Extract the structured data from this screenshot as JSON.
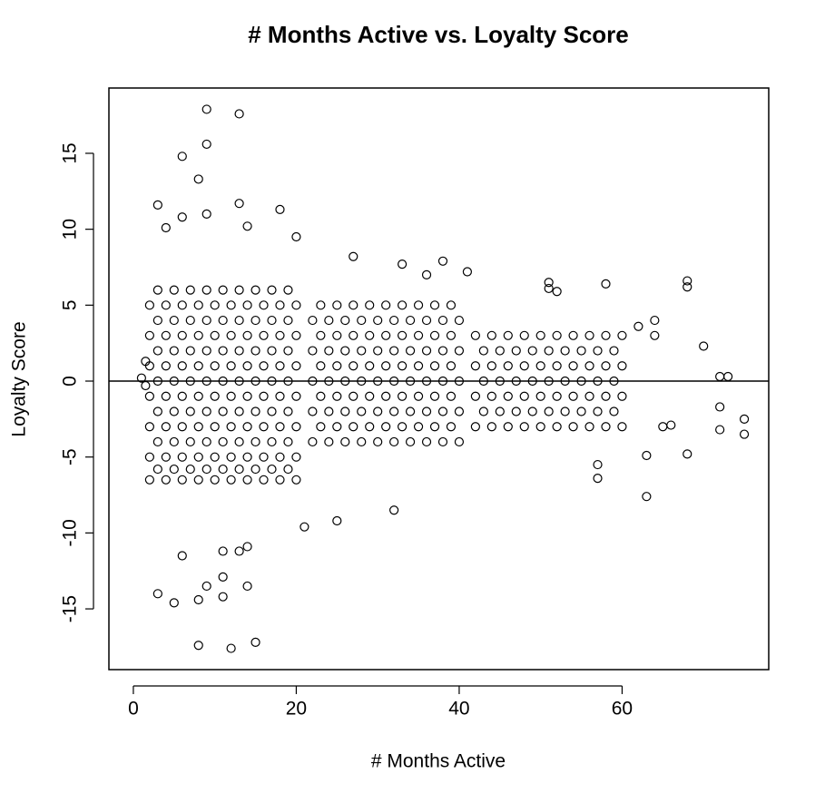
{
  "chart_data": {
    "type": "scatter",
    "title": "# Months Active vs. Loyalty Score",
    "x_label": "# Months Active",
    "y_label": "Loyalty Score",
    "color": "#000000",
    "hline": 0,
    "xlim": [
      -3.0,
      78.0
    ],
    "ylim": [
      -19.0,
      19.3
    ],
    "xticks": [
      0,
      20,
      40,
      60
    ],
    "yticks": [
      -15,
      -10,
      -5,
      0,
      5,
      10,
      15
    ],
    "x": [
      2,
      2,
      2,
      2,
      2,
      2,
      2,
      3,
      3,
      3,
      3,
      3,
      3,
      3,
      4,
      4,
      4,
      4,
      4,
      4,
      4,
      5,
      5,
      5,
      5,
      5,
      5,
      5,
      6,
      6,
      6,
      6,
      6,
      6,
      6,
      7,
      7,
      7,
      7,
      7,
      7,
      7,
      8,
      8,
      8,
      8,
      8,
      8,
      8,
      9,
      9,
      9,
      9,
      9,
      9,
      9,
      10,
      10,
      10,
      10,
      10,
      10,
      10,
      11,
      11,
      11,
      11,
      11,
      11,
      11,
      12,
      12,
      12,
      12,
      12,
      12,
      12,
      13,
      13,
      13,
      13,
      13,
      13,
      13,
      14,
      14,
      14,
      14,
      14,
      14,
      14,
      15,
      15,
      15,
      15,
      15,
      15,
      15,
      16,
      16,
      16,
      16,
      16,
      16,
      16,
      17,
      17,
      17,
      17,
      17,
      17,
      17,
      18,
      18,
      18,
      18,
      18,
      18,
      18,
      19,
      19,
      19,
      19,
      19,
      19,
      19,
      20,
      20,
      20,
      20,
      20,
      20,
      20,
      22,
      22,
      22,
      22,
      22,
      23,
      23,
      23,
      23,
      23,
      24,
      24,
      24,
      24,
      24,
      25,
      25,
      25,
      25,
      25,
      26,
      26,
      26,
      26,
      26,
      27,
      27,
      27,
      27,
      27,
      28,
      28,
      28,
      28,
      28,
      29,
      29,
      29,
      29,
      29,
      30,
      30,
      30,
      30,
      30,
      31,
      31,
      31,
      31,
      31,
      32,
      32,
      32,
      32,
      32,
      33,
      33,
      33,
      33,
      33,
      34,
      34,
      34,
      34,
      34,
      35,
      35,
      35,
      35,
      35,
      36,
      36,
      36,
      36,
      36,
      37,
      37,
      37,
      37,
      37,
      38,
      38,
      38,
      38,
      38,
      39,
      39,
      39,
      39,
      39,
      40,
      40,
      40,
      40,
      40,
      42,
      42,
      42,
      42,
      43,
      43,
      43,
      44,
      44,
      44,
      44,
      45,
      45,
      45,
      46,
      46,
      46,
      46,
      47,
      47,
      47,
      48,
      48,
      48,
      48,
      49,
      49,
      49,
      50,
      50,
      50,
      50,
      51,
      51,
      51,
      52,
      52,
      52,
      52,
      53,
      53,
      53,
      54,
      54,
      54,
      54,
      55,
      55,
      55,
      56,
      56,
      56,
      56,
      57,
      57,
      57,
      58,
      58,
      58,
      58,
      59,
      59,
      59,
      60,
      60,
      60,
      60,
      9,
      13,
      9,
      6,
      8,
      3,
      13,
      9,
      6,
      18,
      4,
      14,
      20,
      8,
      12,
      15,
      5,
      3,
      8,
      11,
      9,
      14,
      11,
      6,
      11,
      13,
      14,
      32,
      25,
      21,
      63,
      57,
      57,
      51,
      51,
      52,
      58,
      68,
      68,
      70,
      75,
      75,
      72,
      72,
      68,
      63,
      72,
      73,
      65,
      66,
      62,
      64,
      64,
      38,
      41,
      36,
      33,
      27,
      1,
      1.5,
      1.5
    ],
    "y": [
      -5,
      -3,
      -1,
      1,
      3,
      5,
      -6.5,
      -4,
      -2,
      0,
      2,
      4,
      6,
      -5.8,
      -5,
      -3,
      -1,
      1,
      3,
      5,
      -6.5,
      -4,
      -2,
      0,
      2,
      4,
      6,
      -5.8,
      -5,
      -3,
      -1,
      1,
      3,
      5,
      -6.5,
      -4,
      -2,
      0,
      2,
      4,
      6,
      -5.8,
      -5,
      -3,
      -1,
      1,
      3,
      5,
      -6.5,
      -4,
      -2,
      0,
      2,
      4,
      6,
      -5.8,
      -5,
      -3,
      -1,
      1,
      3,
      5,
      -6.5,
      -4,
      -2,
      0,
      2,
      4,
      6,
      -5.8,
      -5,
      -3,
      -1,
      1,
      3,
      5,
      -6.5,
      -4,
      -2,
      0,
      2,
      4,
      6,
      -5.8,
      -5,
      -3,
      -1,
      1,
      3,
      5,
      -6.5,
      -4,
      -2,
      0,
      2,
      4,
      6,
      -5.8,
      -5,
      -3,
      -1,
      1,
      3,
      5,
      -6.5,
      -4,
      -2,
      0,
      2,
      4,
      6,
      -5.8,
      -5,
      -3,
      -1,
      1,
      3,
      5,
      -6.5,
      -4,
      -2,
      0,
      2,
      4,
      6,
      -5.8,
      -5,
      -3,
      -1,
      1,
      3,
      5,
      -6.5,
      -4,
      -2,
      0,
      2,
      4,
      -3,
      -1,
      1,
      3,
      5,
      -4,
      -2,
      0,
      2,
      4,
      -3,
      -1,
      1,
      3,
      5,
      -4,
      -2,
      0,
      2,
      4,
      -3,
      -1,
      1,
      3,
      5,
      -4,
      -2,
      0,
      2,
      4,
      -3,
      -1,
      1,
      3,
      5,
      -4,
      -2,
      0,
      2,
      4,
      -3,
      -1,
      1,
      3,
      5,
      -4,
      -2,
      0,
      2,
      4,
      -3,
      -1,
      1,
      3,
      5,
      -4,
      -2,
      0,
      2,
      4,
      -3,
      -1,
      1,
      3,
      5,
      -4,
      -2,
      0,
      2,
      4,
      -3,
      -1,
      1,
      3,
      5,
      -4,
      -2,
      0,
      2,
      4,
      -3,
      -1,
      1,
      3,
      5,
      -4,
      -2,
      0,
      2,
      4,
      -3,
      -1,
      1,
      3,
      -2,
      0,
      2,
      -3,
      -1,
      1,
      3,
      -2,
      0,
      2,
      -3,
      -1,
      1,
      3,
      -2,
      0,
      2,
      -3,
      -1,
      1,
      3,
      -2,
      0,
      2,
      -3,
      -1,
      1,
      3,
      -2,
      0,
      2,
      -3,
      -1,
      1,
      3,
      -2,
      0,
      2,
      -3,
      -1,
      1,
      3,
      -2,
      0,
      2,
      -3,
      -1,
      1,
      3,
      -2,
      0,
      2,
      -3,
      -1,
      1,
      3,
      -2,
      0,
      2,
      -3,
      -1,
      1,
      3,
      17.9,
      17.6,
      15.6,
      14.8,
      13.3,
      11.6,
      11.7,
      11,
      10.8,
      11.3,
      10.1,
      10.2,
      9.5,
      -17.4,
      -17.6,
      -17.2,
      -14.6,
      -14,
      -14.4,
      -14.2,
      -13.5,
      -13.5,
      -12.9,
      -11.5,
      -11.2,
      -11.2,
      -10.9,
      -8.5,
      -9.2,
      -9.6,
      -7.6,
      -6.4,
      -5.5,
      6.5,
      6.1,
      5.9,
      6.4,
      6.6,
      6.2,
      2.3,
      -2.5,
      -3.5,
      -3.2,
      -1.7,
      -4.8,
      -4.9,
      0.3,
      0.3,
      -3,
      -2.9,
      3.6,
      4,
      3,
      7.9,
      7.2,
      7,
      7.7,
      8.2,
      0.2,
      1.3,
      -0.3
    ]
  }
}
